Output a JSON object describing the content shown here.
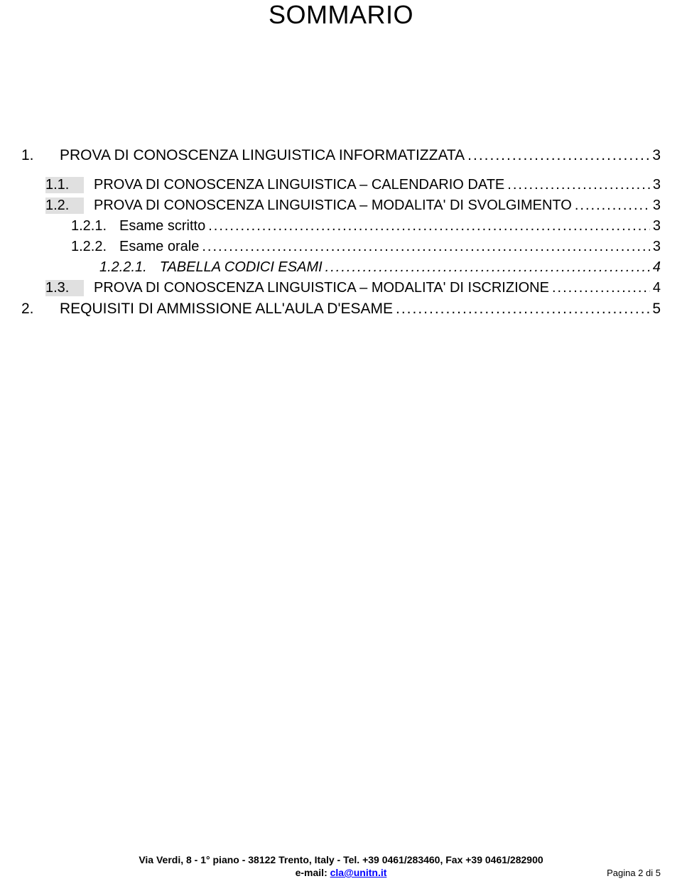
{
  "title": "SOMMARIO",
  "toc": [
    {
      "level": 0,
      "num": "1.",
      "label": "PROVA DI CONOSCENZA LINGUISTICA INFORMATIZZATA",
      "page": "3",
      "shaded": false
    },
    {
      "level": 1,
      "num": "1.1.",
      "label": "PROVA DI CONOSCENZA LINGUISTICA – CALENDARIO DATE",
      "page": "3",
      "shaded": true
    },
    {
      "level": 1,
      "num": "1.2.",
      "label": "PROVA DI CONOSCENZA LINGUISTICA – MODALITA' DI SVOLGIMENTO",
      "page": "3",
      "shaded": true
    },
    {
      "level": 2,
      "num": "1.2.1.",
      "label": "Esame scritto",
      "page": "3",
      "shaded": false
    },
    {
      "level": 2,
      "num": "1.2.2.",
      "label": "Esame orale",
      "page": "3",
      "shaded": false
    },
    {
      "level": 3,
      "num": "1.2.2.1.",
      "label": "TABELLA CODICI ESAMI",
      "page": "4",
      "shaded": false
    },
    {
      "level": 1,
      "num": "1.3.",
      "label": "PROVA DI CONOSCENZA LINGUISTICA – MODALITA' DI ISCRIZIONE",
      "page": "4",
      "shaded": true
    },
    {
      "level": 0,
      "num": "2.",
      "label": "REQUISITI DI AMMISSIONE ALL'AULA D'ESAME",
      "page": "5",
      "shaded": false
    }
  ],
  "footer": {
    "line1": "Via Verdi, 8 - 1° piano - 38122 Trento, Italy - Tel. +39 0461/283460, Fax +39 0461/282900",
    "line2_prefix": "e-mail: ",
    "email": "cla@unitn.it"
  },
  "pageNumber": "Pagina 2 di 5"
}
